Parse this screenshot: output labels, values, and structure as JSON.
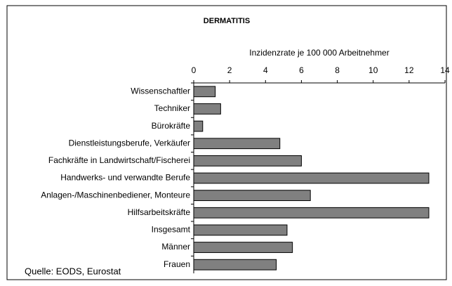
{
  "chart_data": {
    "type": "bar",
    "orientation": "horizontal",
    "title": "DERMATITIS",
    "x_label": "Inzidenzrate je 100 000 Arbeitnehmer",
    "source": "Quelle: EODS, Eurostat",
    "categories": [
      "Wissenschaftler",
      "Techniker",
      "Bürokräfte",
      "Dienstleistungsberufe, Verkäufer",
      "Fachkräfte in Landwirtschaft/Fischerei",
      "Handwerks- und verwandte Berufe",
      "Anlagen-/Maschinenbediener, Monteure",
      "Hilfsarbeitskräfte",
      "Insgesamt",
      "Männer",
      "Frauen"
    ],
    "values": [
      1.2,
      1.5,
      0.5,
      4.8,
      6.0,
      13.1,
      6.5,
      13.1,
      5.2,
      5.5,
      4.6
    ],
    "color": "#808080",
    "xlim": [
      0,
      14
    ],
    "xticks": [
      0,
      2,
      4,
      6,
      8,
      10,
      12,
      14
    ],
    "grid": false
  }
}
